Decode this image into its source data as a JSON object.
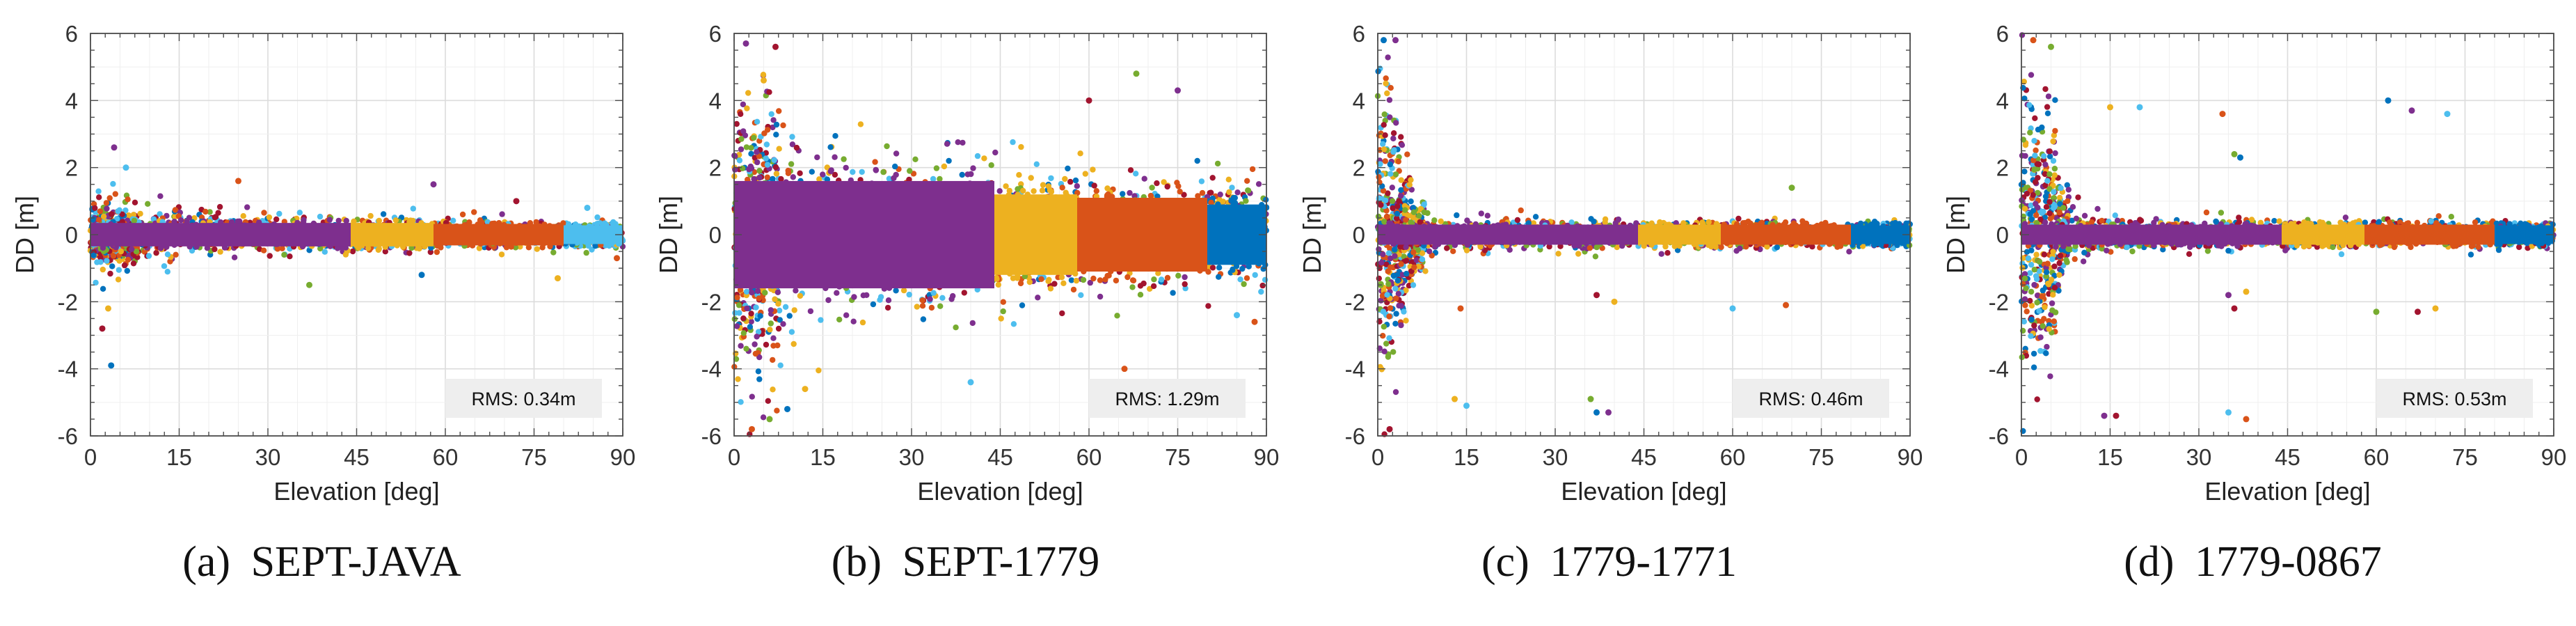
{
  "chart_data": [
    {
      "type": "scatter",
      "caption_tag": "(a)",
      "caption_label": "SEPT-JAVA",
      "xlabel": "Elevation [deg]",
      "ylabel": "DD [m]",
      "xlim": [
        0,
        90
      ],
      "ylim": [
        -6,
        6
      ],
      "xticks": [
        0,
        15,
        30,
        45,
        60,
        75,
        90
      ],
      "yticks": [
        -6,
        -4,
        -2,
        0,
        2,
        4,
        6
      ],
      "grid": true,
      "annotation": "RMS: 0.34m",
      "annotation_position": "bottom-right",
      "colors": [
        "#0072BD",
        "#D95319",
        "#EDB120",
        "#7E2F8E",
        "#77AC30",
        "#4DBEEE",
        "#A2142F"
      ],
      "bands": [
        {
          "x": [
            0,
            44
          ],
          "half_width": 0.35,
          "color": "#7E2F8E"
        },
        {
          "x": [
            44,
            58
          ],
          "half_width": 0.35,
          "color": "#EDB120"
        },
        {
          "x": [
            58,
            80
          ],
          "half_width": 0.32,
          "color": "#D95319"
        },
        {
          "x": [
            80,
            90
          ],
          "half_width": 0.28,
          "color": "#4DBEEE"
        }
      ],
      "spread": [
        {
          "x": 0,
          "s": 0.75
        },
        {
          "x": 5,
          "s": 0.7
        },
        {
          "x": 15,
          "s": 0.55
        },
        {
          "x": 30,
          "s": 0.45
        },
        {
          "x": 45,
          "s": 0.38
        },
        {
          "x": 60,
          "s": 0.33
        },
        {
          "x": 75,
          "s": 0.3
        },
        {
          "x": 90,
          "s": 0.28
        }
      ],
      "outliers": [
        [
          3.5,
          -3.9
        ],
        [
          4,
          2.6
        ],
        [
          2,
          -2.8
        ],
        [
          3,
          -2.2
        ],
        [
          6,
          2.0
        ],
        [
          25,
          1.6
        ],
        [
          37,
          -1.5
        ],
        [
          56,
          -1.2
        ],
        [
          58,
          1.5
        ],
        [
          72,
          1.0
        ],
        [
          79,
          -1.3
        ],
        [
          84,
          0.8
        ],
        [
          89,
          -0.7
        ]
      ]
    },
    {
      "type": "scatter",
      "caption_tag": "(b)",
      "caption_label": "SEPT-1779",
      "xlabel": "Elevation [deg]",
      "ylabel": "DD [m]",
      "xlim": [
        0,
        90
      ],
      "ylim": [
        -6,
        6
      ],
      "xticks": [
        0,
        15,
        30,
        45,
        60,
        75,
        90
      ],
      "yticks": [
        -6,
        -4,
        -2,
        0,
        2,
        4,
        6
      ],
      "grid": true,
      "annotation": "RMS: 1.29m",
      "annotation_position": "bottom-right",
      "colors": [
        "#0072BD",
        "#D95319",
        "#EDB120",
        "#7E2F8E",
        "#77AC30",
        "#4DBEEE",
        "#A2142F"
      ],
      "bands": [
        {
          "x": [
            0,
            44
          ],
          "half_width": 1.6,
          "color": "#7E2F8E"
        },
        {
          "x": [
            44,
            58
          ],
          "half_width": 1.2,
          "color": "#EDB120"
        },
        {
          "x": [
            58,
            80
          ],
          "half_width": 1.1,
          "color": "#D95319"
        },
        {
          "x": [
            80,
            90
          ],
          "half_width": 0.9,
          "color": "#0072BD"
        }
      ],
      "spread": [
        {
          "x": 0,
          "s": 3.2
        },
        {
          "x": 5,
          "s": 3.0
        },
        {
          "x": 10,
          "s": 2.4
        },
        {
          "x": 20,
          "s": 2.0
        },
        {
          "x": 35,
          "s": 1.8
        },
        {
          "x": 50,
          "s": 1.6
        },
        {
          "x": 65,
          "s": 1.5
        },
        {
          "x": 80,
          "s": 1.3
        },
        {
          "x": 90,
          "s": 1.2
        }
      ],
      "outliers": [
        [
          3,
          -5.8
        ],
        [
          6,
          -5.5
        ],
        [
          9,
          -5.2
        ],
        [
          2,
          5.7
        ],
        [
          7,
          5.6
        ],
        [
          12,
          -4.6
        ],
        [
          40,
          -4.4
        ],
        [
          66,
          -4.0
        ],
        [
          68,
          4.8
        ],
        [
          70,
          -4.7
        ],
        [
          75,
          4.3
        ],
        [
          60,
          4.0
        ],
        [
          5,
          4.6
        ],
        [
          85,
          -2.4
        ],
        [
          88,
          -2.6
        ]
      ]
    },
    {
      "type": "scatter",
      "caption_tag": "(c)",
      "caption_label": "1779-1771",
      "xlabel": "Elevation [deg]",
      "ylabel": "DD [m]",
      "xlim": [
        0,
        90
      ],
      "ylim": [
        -6,
        6
      ],
      "xticks": [
        0,
        15,
        30,
        45,
        60,
        75,
        90
      ],
      "yticks": [
        -6,
        -4,
        -2,
        0,
        2,
        4,
        6
      ],
      "grid": true,
      "annotation": "RMS: 0.46m",
      "annotation_position": "bottom-right",
      "colors": [
        "#0072BD",
        "#D95319",
        "#EDB120",
        "#7E2F8E",
        "#77AC30",
        "#4DBEEE",
        "#A2142F"
      ],
      "bands": [
        {
          "x": [
            0,
            44
          ],
          "half_width": 0.3,
          "color": "#7E2F8E"
        },
        {
          "x": [
            44,
            58
          ],
          "half_width": 0.3,
          "color": "#EDB120"
        },
        {
          "x": [
            58,
            80
          ],
          "half_width": 0.3,
          "color": "#D95319"
        },
        {
          "x": [
            80,
            90
          ],
          "half_width": 0.28,
          "color": "#0072BD"
        }
      ],
      "spread": [
        {
          "x": 0,
          "s": 3.5
        },
        {
          "x": 2,
          "s": 3.2
        },
        {
          "x": 4,
          "s": 2.2
        },
        {
          "x": 6,
          "s": 1.0
        },
        {
          "x": 10,
          "s": 0.45
        },
        {
          "x": 20,
          "s": 0.35
        },
        {
          "x": 45,
          "s": 0.3
        },
        {
          "x": 90,
          "s": 0.28
        }
      ],
      "outliers": [
        [
          13,
          -4.9
        ],
        [
          15,
          -5.1
        ],
        [
          14,
          -2.2
        ],
        [
          36,
          -4.9
        ],
        [
          37,
          -5.3
        ],
        [
          39,
          -5.3
        ],
        [
          37,
          -1.8
        ],
        [
          40,
          -2.0
        ],
        [
          60,
          -2.2
        ],
        [
          69,
          -2.1
        ],
        [
          70,
          1.4
        ],
        [
          1,
          5.8
        ],
        [
          3,
          5.8
        ],
        [
          2,
          -5.8
        ]
      ]
    },
    {
      "type": "scatter",
      "caption_tag": "(d)",
      "caption_label": "1779-0867",
      "xlabel": "Elevation [deg]",
      "ylabel": "DD [m]",
      "xlim": [
        0,
        90
      ],
      "ylim": [
        -6,
        6
      ],
      "xticks": [
        0,
        15,
        30,
        45,
        60,
        75,
        90
      ],
      "yticks": [
        -6,
        -4,
        -2,
        0,
        2,
        4,
        6
      ],
      "grid": true,
      "annotation": "RMS: 0.53m",
      "annotation_position": "bottom-right",
      "colors": [
        "#0072BD",
        "#D95319",
        "#EDB120",
        "#7E2F8E",
        "#77AC30",
        "#4DBEEE",
        "#A2142F"
      ],
      "bands": [
        {
          "x": [
            0,
            44
          ],
          "half_width": 0.3,
          "color": "#7E2F8E"
        },
        {
          "x": [
            44,
            58
          ],
          "half_width": 0.3,
          "color": "#EDB120"
        },
        {
          "x": [
            58,
            80
          ],
          "half_width": 0.3,
          "color": "#D95319"
        },
        {
          "x": [
            80,
            90
          ],
          "half_width": 0.28,
          "color": "#0072BD"
        }
      ],
      "spread": [
        {
          "x": 0,
          "s": 3.6
        },
        {
          "x": 2,
          "s": 3.3
        },
        {
          "x": 5,
          "s": 2.8
        },
        {
          "x": 7,
          "s": 1.0
        },
        {
          "x": 10,
          "s": 0.45
        },
        {
          "x": 20,
          "s": 0.35
        },
        {
          "x": 45,
          "s": 0.3
        },
        {
          "x": 90,
          "s": 0.28
        }
      ],
      "outliers": [
        [
          14,
          -5.4
        ],
        [
          16,
          -5.4
        ],
        [
          15,
          3.8
        ],
        [
          20,
          3.8
        ],
        [
          34,
          3.6
        ],
        [
          36,
          2.4
        ],
        [
          37,
          2.3
        ],
        [
          35,
          -1.8
        ],
        [
          36,
          -2.2
        ],
        [
          38,
          -1.7
        ],
        [
          35,
          -5.3
        ],
        [
          38,
          -5.5
        ],
        [
          60,
          -2.3
        ],
        [
          62,
          4.0
        ],
        [
          66,
          3.7
        ],
        [
          67,
          -2.3
        ],
        [
          70,
          -2.2
        ],
        [
          72,
          3.6
        ],
        [
          2,
          5.8
        ],
        [
          5,
          5.6
        ]
      ]
    }
  ]
}
